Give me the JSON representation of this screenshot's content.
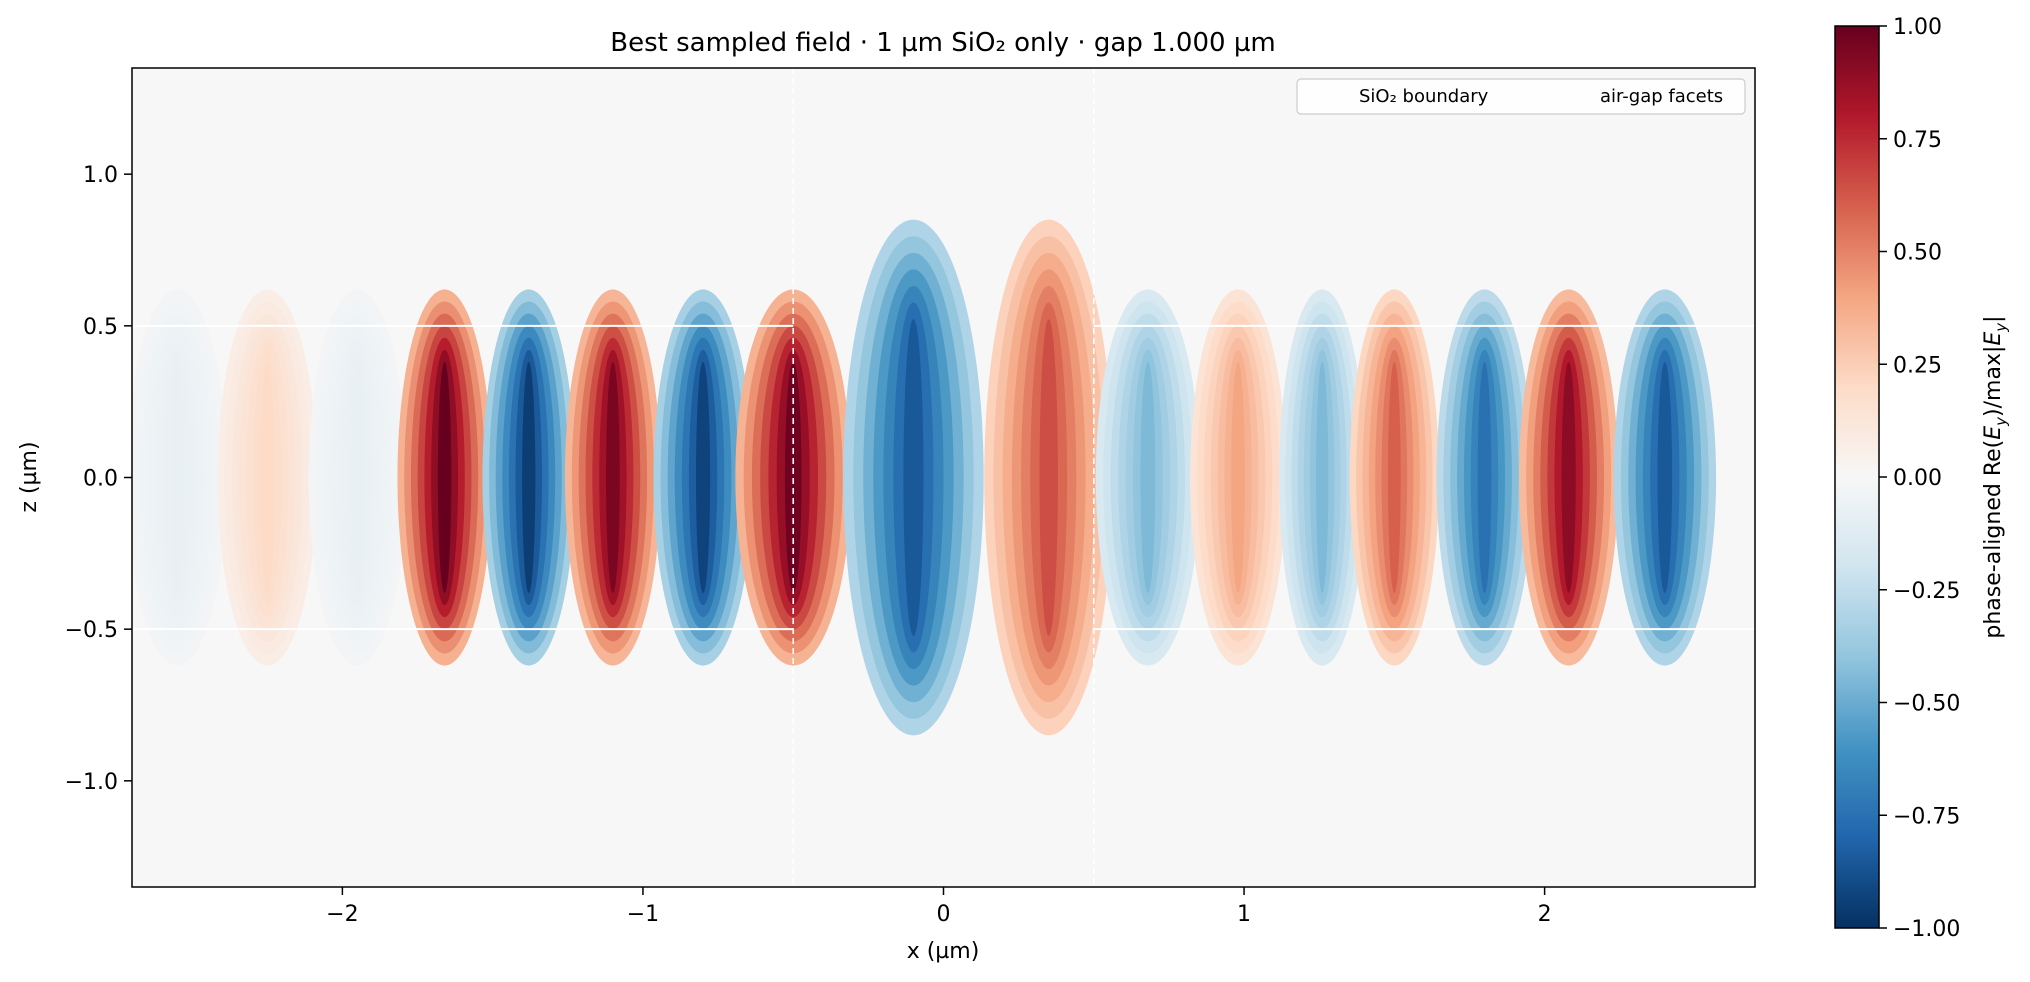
{
  "chart_data": {
    "type": "heatmap",
    "title": "Best sampled field · 1 µm SiO₂ only · gap 1.000 µm",
    "xlabel": "x (µm)",
    "ylabel": "z (µm)",
    "xlim": [
      -2.7,
      2.7
    ],
    "ylim": [
      -1.35,
      1.35
    ],
    "xticks": [
      -2,
      -1,
      0,
      1,
      2
    ],
    "xticklabels": [
      "−2",
      "−1",
      "0",
      "1",
      "2"
    ],
    "yticks": [
      1.0,
      0.5,
      0.0,
      -0.5,
      -1.0
    ],
    "yticklabels": [
      "1.0",
      "0.5",
      "0.0",
      "−0.5",
      "−1.0"
    ],
    "colormap": "RdBu_r",
    "clim": [
      -1.0,
      1.0
    ],
    "colorbar": {
      "label": "phase-aligned Re(E_y)/max|E_y|",
      "label_main": "phase-aligned Re(",
      "label_E": "E",
      "label_sub": "y",
      "label_mid": ")/max|",
      "label_end": "|",
      "ticks": [
        1.0,
        0.75,
        0.5,
        0.25,
        0.0,
        -0.25,
        -0.5,
        -0.75,
        -1.0
      ],
      "ticklabels": [
        "1.00",
        "0.75",
        "0.50",
        "0.25",
        "0.00",
        "−0.25",
        "−0.50",
        "−0.75",
        "−1.00"
      ]
    },
    "legend": {
      "position": "upper right",
      "entries": [
        {
          "label": "SiO₂ boundary",
          "color": "#ffffff",
          "style": "solid"
        },
        {
          "label": "air-gap facets",
          "color": "#ffffff",
          "style": "dashed"
        }
      ]
    },
    "sio2_boundary": {
      "z": [
        -0.5,
        0.5
      ],
      "segments": [
        {
          "x_from": -2.7,
          "x_to": -0.5
        },
        {
          "x_from": 0.5,
          "x_to": 2.7
        }
      ]
    },
    "air_gap_facets_x": [
      -0.5,
      0.5
    ],
    "field_extrema": [
      {
        "x": -2.55,
        "value": -0.08
      },
      {
        "x": -2.25,
        "value": 0.2
      },
      {
        "x": -1.95,
        "value": -0.08
      },
      {
        "x": -1.66,
        "value": 1.0
      },
      {
        "x": -1.38,
        "value": -0.95
      },
      {
        "x": -1.1,
        "value": 0.95
      },
      {
        "x": -0.8,
        "value": -0.93
      },
      {
        "x": -0.5,
        "value": 0.98
      },
      {
        "x": -0.1,
        "value": -0.85
      },
      {
        "x": 0.35,
        "value": 0.65
      },
      {
        "x": 0.68,
        "value": -0.45
      },
      {
        "x": 0.98,
        "value": 0.4
      },
      {
        "x": 1.26,
        "value": -0.45
      },
      {
        "x": 1.5,
        "value": 0.6
      },
      {
        "x": 1.8,
        "value": -0.75
      },
      {
        "x": 2.08,
        "value": 0.9
      },
      {
        "x": 2.4,
        "value": -0.85
      }
    ]
  }
}
